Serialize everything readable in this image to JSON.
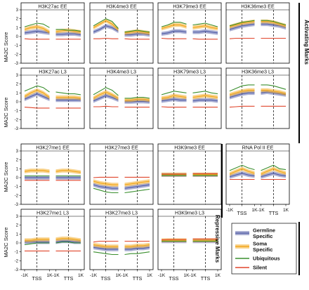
{
  "figure": {
    "ylabel": "MA2C Score",
    "side_labels": {
      "activating": "Activating Marks",
      "repressive": "Repressive Marks"
    },
    "x_ticks": [
      "-1K",
      "TSS",
      "1K",
      "-1K",
      "TTS",
      "1K"
    ],
    "y_ticks": [
      -3,
      -2,
      -1,
      0,
      1,
      2,
      3
    ]
  },
  "legend": [
    {
      "label_lines": [
        "Germline",
        "Specific"
      ],
      "color": "#5560a8",
      "style": "band"
    },
    {
      "label_lines": [
        "Soma",
        "Specific"
      ],
      "color": "#f2a81d",
      "style": "band"
    },
    {
      "label_lines": [
        "Ubiquitous"
      ],
      "color": "#3a8f2e",
      "style": "line"
    },
    {
      "label_lines": [
        "Silent"
      ],
      "color": "#e0452b",
      "style": "line"
    }
  ],
  "chart_data": [
    {
      "type": "line",
      "title": "H3K27ac EE",
      "ylim": [
        -3,
        3
      ],
      "series": [
        {
          "name": "Germline Specific",
          "values": [
            0.4,
            0.5,
            0.6,
            0.5,
            0.4,
            0.25,
            0.25,
            0.3,
            0.3,
            0.2
          ]
        },
        {
          "name": "Soma Specific",
          "values": [
            0.8,
            1.0,
            1.1,
            0.9,
            0.5,
            0.55,
            0.65,
            0.7,
            0.6,
            0.5
          ]
        },
        {
          "name": "Ubiquitous",
          "values": [
            1.1,
            1.3,
            1.5,
            1.4,
            1.0,
            0.8,
            0.8,
            0.7,
            0.7,
            0.6
          ]
        },
        {
          "name": "Silent",
          "values": [
            -0.25,
            -0.3,
            -0.3,
            -0.3,
            -0.3,
            -0.3,
            -0.3,
            -0.3,
            -0.3,
            -0.3
          ]
        }
      ]
    },
    {
      "type": "line",
      "title": "H3K4me3 EE",
      "ylim": [
        -3,
        3
      ],
      "series": [
        {
          "name": "Germline Specific",
          "values": [
            0.5,
            0.8,
            1.2,
            1.0,
            0.6,
            0.2,
            0.2,
            0.3,
            0.3,
            0.2
          ]
        },
        {
          "name": "Soma Specific",
          "values": [
            1.0,
            1.4,
            1.8,
            1.4,
            0.8,
            0.4,
            0.5,
            0.6,
            0.5,
            0.4
          ]
        },
        {
          "name": "Ubiquitous",
          "values": [
            1.2,
            1.6,
            2.0,
            1.7,
            0.9,
            0.5,
            0.6,
            0.7,
            0.6,
            0.5
          ]
        },
        {
          "name": "Silent",
          "values": [
            -0.25,
            -0.25,
            -0.2,
            -0.25,
            -0.25,
            -0.25,
            -0.3,
            -0.3,
            -0.3,
            -0.3
          ]
        }
      ]
    },
    {
      "type": "line",
      "title": "H3K79me3 EE",
      "ylim": [
        -3,
        3
      ],
      "series": [
        {
          "name": "Germline Specific",
          "values": [
            0.3,
            0.4,
            0.6,
            0.6,
            0.5,
            0.5,
            0.5,
            0.6,
            0.5,
            0.4
          ]
        },
        {
          "name": "Soma Specific",
          "values": [
            0.9,
            1.1,
            1.3,
            1.3,
            1.1,
            1.0,
            1.1,
            1.2,
            1.0,
            0.9
          ]
        },
        {
          "name": "Ubiquitous",
          "values": [
            1.1,
            1.3,
            1.6,
            1.6,
            1.4,
            1.3,
            1.4,
            1.5,
            1.3,
            1.1
          ]
        },
        {
          "name": "Silent",
          "values": [
            -0.2,
            -0.25,
            -0.25,
            -0.25,
            -0.25,
            -0.25,
            -0.3,
            -0.3,
            -0.3,
            -0.3
          ]
        }
      ]
    },
    {
      "type": "line",
      "title": "H3K36me3 EE",
      "ylim": [
        -3,
        3
      ],
      "series": [
        {
          "name": "Germline Specific",
          "values": [
            0.8,
            1.0,
            1.2,
            1.3,
            1.4,
            1.4,
            1.4,
            1.3,
            1.2,
            1.0
          ]
        },
        {
          "name": "Soma Specific",
          "values": [
            1.1,
            1.3,
            1.5,
            1.6,
            1.7,
            1.7,
            1.7,
            1.6,
            1.4,
            1.2
          ]
        },
        {
          "name": "Ubiquitous",
          "values": [
            1.2,
            1.4,
            1.6,
            1.7,
            1.8,
            1.8,
            1.8,
            1.7,
            1.5,
            1.3
          ]
        },
        {
          "name": "Silent",
          "values": [
            -0.25,
            -0.2,
            -0.2,
            -0.2,
            -0.2,
            -0.2,
            -0.2,
            -0.2,
            -0.2,
            -0.2
          ]
        }
      ]
    },
    {
      "type": "line",
      "title": "H3K27ac L3",
      "ylim": [
        -3,
        3
      ],
      "series": [
        {
          "name": "Germline Specific",
          "values": [
            0.3,
            0.6,
            0.9,
            0.6,
            0.3,
            0.2,
            0.2,
            0.2,
            0.2,
            0.2
          ]
        },
        {
          "name": "Soma Specific",
          "values": [
            0.6,
            1.0,
            1.3,
            1.0,
            0.5,
            0.5,
            0.5,
            0.5,
            0.5,
            0.4
          ]
        },
        {
          "name": "Ubiquitous",
          "values": [
            1.2,
            1.5,
            1.8,
            1.6,
            1.1,
            1.1,
            1.0,
            0.9,
            0.9,
            0.8
          ]
        },
        {
          "name": "Silent",
          "values": [
            -0.6,
            -0.65,
            -0.7,
            -0.7,
            -0.7,
            -0.7,
            -0.7,
            -0.7,
            -0.7,
            -0.7
          ]
        }
      ]
    },
    {
      "type": "line",
      "title": "H3K4me3 L3",
      "ylim": [
        -3,
        3
      ],
      "series": [
        {
          "name": "Germline Specific",
          "values": [
            0.1,
            0.4,
            0.7,
            0.5,
            0.2,
            0.0,
            0.0,
            0.05,
            0.05,
            0.0
          ]
        },
        {
          "name": "Soma Specific",
          "values": [
            0.4,
            0.8,
            1.1,
            0.8,
            0.4,
            0.2,
            0.2,
            0.3,
            0.3,
            0.2
          ]
        },
        {
          "name": "Ubiquitous",
          "values": [
            0.8,
            1.2,
            1.6,
            1.3,
            0.7,
            0.4,
            0.4,
            0.5,
            0.5,
            0.4
          ]
        },
        {
          "name": "Silent",
          "values": [
            -0.55,
            -0.55,
            -0.5,
            -0.55,
            -0.55,
            -0.6,
            -0.6,
            -0.6,
            -0.6,
            -0.6
          ]
        }
      ]
    },
    {
      "type": "line",
      "title": "H3K79me3 L3",
      "ylim": [
        -3,
        3
      ],
      "series": [
        {
          "name": "Germline Specific",
          "values": [
            0.1,
            0.2,
            0.3,
            0.2,
            0.2,
            0.1,
            0.2,
            0.2,
            0.2,
            0.1
          ]
        },
        {
          "name": "Soma Specific",
          "values": [
            0.4,
            0.5,
            0.7,
            0.6,
            0.5,
            0.5,
            0.6,
            0.7,
            0.6,
            0.5
          ]
        },
        {
          "name": "Ubiquitous",
          "values": [
            0.8,
            1.0,
            1.2,
            1.1,
            1.0,
            1.0,
            1.1,
            1.2,
            1.0,
            0.9
          ]
        },
        {
          "name": "Silent",
          "values": [
            -0.55,
            -0.6,
            -0.6,
            -0.6,
            -0.6,
            -0.6,
            -0.6,
            -0.6,
            -0.6,
            -0.6
          ]
        }
      ]
    },
    {
      "type": "line",
      "title": "H3K36me3 L3",
      "ylim": [
        -3,
        3
      ],
      "series": [
        {
          "name": "Germline Specific",
          "values": [
            0.5,
            0.7,
            0.9,
            1.0,
            1.0,
            1.0,
            1.1,
            1.0,
            0.9,
            0.8
          ]
        },
        {
          "name": "Soma Specific",
          "values": [
            0.8,
            1.0,
            1.2,
            1.3,
            1.3,
            1.3,
            1.3,
            1.2,
            1.1,
            0.9
          ]
        },
        {
          "name": "Ubiquitous",
          "values": [
            1.2,
            1.5,
            1.8,
            1.9,
            1.9,
            1.9,
            1.9,
            1.8,
            1.6,
            1.4
          ]
        },
        {
          "name": "Silent",
          "values": [
            -0.6,
            -0.55,
            -0.5,
            -0.5,
            -0.5,
            -0.5,
            -0.5,
            -0.5,
            -0.5,
            -0.5
          ]
        }
      ]
    },
    {
      "type": "line",
      "title": "H3K27me1 EE",
      "ylim": [
        -3,
        3
      ],
      "series": [
        {
          "name": "Germline Specific",
          "values": [
            0.0,
            0.0,
            0.0,
            0.0,
            0.0,
            0.0,
            0.0,
            0.0,
            0.0,
            0.0
          ]
        },
        {
          "name": "Soma Specific",
          "values": [
            0.7,
            0.8,
            0.8,
            0.8,
            0.7,
            0.7,
            0.8,
            0.8,
            0.7,
            0.6
          ]
        },
        {
          "name": "Ubiquitous",
          "values": [
            0.2,
            0.2,
            0.2,
            0.2,
            0.2,
            0.2,
            0.2,
            0.2,
            0.2,
            0.2
          ]
        },
        {
          "name": "Silent",
          "values": [
            -0.3,
            -0.3,
            -0.3,
            -0.3,
            -0.3,
            -0.3,
            -0.3,
            -0.3,
            -0.3,
            -0.3
          ]
        }
      ]
    },
    {
      "type": "line",
      "title": "H3K27me3 EE",
      "ylim": [
        -3,
        3
      ],
      "series": [
        {
          "name": "Germline Specific",
          "values": [
            -0.8,
            -1.0,
            -1.1,
            -1.2,
            -1.2,
            -1.2,
            -1.1,
            -1.0,
            -0.9,
            -0.8
          ]
        },
        {
          "name": "Soma Specific",
          "values": [
            -0.4,
            -0.6,
            -0.7,
            -0.8,
            -0.8,
            -0.8,
            -0.7,
            -0.6,
            -0.5,
            -0.4
          ]
        },
        {
          "name": "Ubiquitous",
          "values": [
            -1.2,
            -1.4,
            -1.6,
            -1.7,
            -1.7,
            -1.7,
            -1.6,
            -1.5,
            -1.4,
            -1.3
          ]
        },
        {
          "name": "Silent",
          "values": [
            0.0,
            0.05,
            0.05,
            0.05,
            0.05,
            0.05,
            0.05,
            0.05,
            0.05,
            0.05
          ]
        }
      ]
    },
    {
      "type": "line",
      "title": "H3K9me3 EE",
      "ylim": [
        -3,
        3
      ],
      "series": [
        {
          "name": "Germline Specific",
          "values": [
            0.3,
            0.3,
            0.3,
            0.3,
            0.3,
            0.3,
            0.3,
            0.3,
            0.3,
            0.3
          ]
        },
        {
          "name": "Soma Specific",
          "values": [
            0.35,
            0.35,
            0.35,
            0.35,
            0.35,
            0.35,
            0.35,
            0.35,
            0.35,
            0.35
          ]
        },
        {
          "name": "Ubiquitous",
          "values": [
            0.25,
            0.25,
            0.25,
            0.25,
            0.25,
            0.25,
            0.25,
            0.25,
            0.25,
            0.25
          ]
        },
        {
          "name": "Silent",
          "values": [
            0.4,
            0.4,
            0.4,
            0.4,
            0.4,
            0.45,
            0.45,
            0.45,
            0.45,
            0.45
          ]
        }
      ]
    },
    {
      "type": "line",
      "title": "RNA Pol II EE",
      "ylim": [
        -3,
        3
      ],
      "series": [
        {
          "name": "Germline Specific",
          "values": [
            0.1,
            0.3,
            0.5,
            0.3,
            0.2,
            0.1,
            0.3,
            0.5,
            0.3,
            0.2
          ]
        },
        {
          "name": "Soma Specific",
          "values": [
            0.4,
            0.7,
            1.0,
            0.7,
            0.5,
            0.4,
            0.7,
            1.0,
            0.7,
            0.5
          ]
        },
        {
          "name": "Ubiquitous",
          "values": [
            0.8,
            1.1,
            1.4,
            1.1,
            0.9,
            0.8,
            1.1,
            1.4,
            1.0,
            0.9
          ]
        },
        {
          "name": "Silent",
          "values": [
            -0.2,
            -0.2,
            -0.2,
            -0.2,
            -0.2,
            -0.2,
            -0.2,
            -0.2,
            -0.2,
            -0.2
          ]
        }
      ]
    },
    {
      "type": "line",
      "title": "H3K27me1 L3",
      "ylim": [
        -3,
        3
      ],
      "series": [
        {
          "name": "Germline Specific",
          "values": [
            0.1,
            0.1,
            0.1,
            0.1,
            0.1,
            0.1,
            0.2,
            0.2,
            0.1,
            0.1
          ]
        },
        {
          "name": "Soma Specific",
          "values": [
            0.3,
            0.3,
            0.4,
            0.4,
            0.4,
            0.4,
            0.5,
            0.5,
            0.4,
            0.3
          ]
        },
        {
          "name": "Ubiquitous",
          "values": [
            -0.2,
            -0.1,
            0.0,
            0.0,
            0.0,
            0.0,
            0.1,
            0.1,
            0.0,
            0.0
          ]
        },
        {
          "name": "Silent",
          "values": [
            -0.9,
            -0.9,
            -0.9,
            -0.9,
            -0.9,
            -0.9,
            -0.9,
            -0.9,
            -0.9,
            -0.9
          ]
        }
      ]
    },
    {
      "type": "line",
      "title": "H3K27me3 L3",
      "ylim": [
        -3,
        3
      ],
      "series": [
        {
          "name": "Germline Specific",
          "values": [
            -0.5,
            -0.6,
            -0.7,
            -0.7,
            -0.7,
            -0.7,
            -0.7,
            -0.6,
            -0.6,
            -0.5
          ]
        },
        {
          "name": "Soma Specific",
          "values": [
            -0.2,
            -0.3,
            -0.4,
            -0.4,
            -0.4,
            -0.4,
            -0.4,
            -0.3,
            -0.3,
            -0.2
          ]
        },
        {
          "name": "Ubiquitous",
          "values": [
            -1.0,
            -1.1,
            -1.2,
            -1.3,
            -1.3,
            -1.3,
            -1.2,
            -1.2,
            -1.1,
            -1.0
          ]
        },
        {
          "name": "Silent",
          "values": [
            0.1,
            0.2,
            0.2,
            0.2,
            0.2,
            0.2,
            0.2,
            0.2,
            0.2,
            0.2
          ]
        }
      ]
    },
    {
      "type": "line",
      "title": "H3K9me3 L3",
      "ylim": [
        -3,
        3
      ],
      "series": [
        {
          "name": "Germline Specific",
          "values": [
            0.2,
            0.2,
            0.2,
            0.2,
            0.2,
            0.2,
            0.2,
            0.2,
            0.2,
            0.2
          ]
        },
        {
          "name": "Soma Specific",
          "values": [
            0.3,
            0.3,
            0.3,
            0.3,
            0.3,
            0.3,
            0.3,
            0.3,
            0.3,
            0.3
          ]
        },
        {
          "name": "Ubiquitous",
          "values": [
            0.2,
            0.2,
            0.2,
            0.2,
            0.2,
            0.2,
            0.2,
            0.2,
            0.2,
            0.2
          ]
        },
        {
          "name": "Silent",
          "values": [
            0.35,
            0.4,
            0.4,
            0.4,
            0.4,
            0.45,
            0.45,
            0.45,
            0.45,
            0.45
          ]
        }
      ]
    }
  ]
}
